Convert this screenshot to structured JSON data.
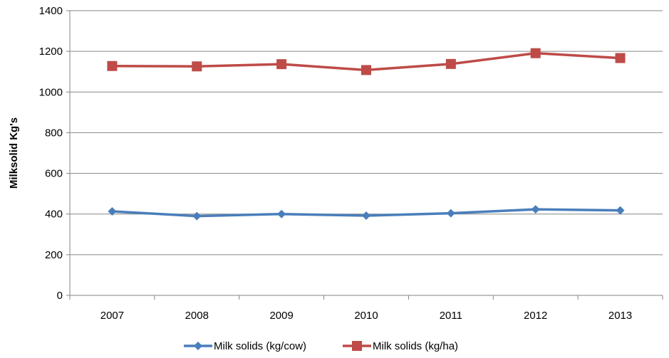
{
  "chart_data": {
    "type": "line",
    "title": "",
    "xlabel": "",
    "ylabel": "Milksolid Kg's",
    "categories": [
      "2007",
      "2008",
      "2009",
      "2010",
      "2011",
      "2012",
      "2013"
    ],
    "ylim": [
      0,
      1400
    ],
    "yticks": [
      0,
      200,
      400,
      600,
      800,
      1000,
      1200,
      1400
    ],
    "grid": "horizontal",
    "legend_position": "bottom",
    "series": [
      {
        "name": "Milk solids (kg/cow)",
        "values": [
          413,
          390,
          400,
          392,
          404,
          423,
          418
        ],
        "color": "#4a7ebb",
        "marker": "diamond"
      },
      {
        "name": "Milk solids (kg/ha)",
        "values": [
          1128,
          1126,
          1137,
          1108,
          1138,
          1191,
          1167
        ],
        "color": "#be4b48",
        "marker": "square"
      }
    ]
  }
}
